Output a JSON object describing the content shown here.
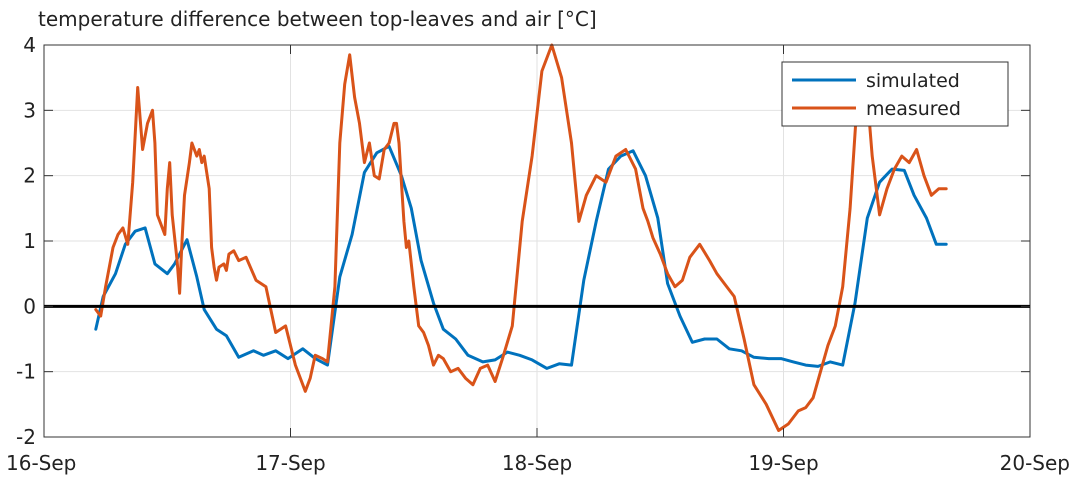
{
  "chart_data": {
    "type": "line",
    "title": "temperature difference between top-leaves and air [°C]",
    "xlabel": "",
    "ylabel": "",
    "x_axis": {
      "type": "date",
      "ticks": [
        "16-Sep",
        "17-Sep",
        "18-Sep",
        "19-Sep",
        "20-Sep"
      ],
      "range": [
        "16-Sep",
        "20-Sep"
      ]
    },
    "ylim": [
      -2,
      4
    ],
    "yticks": [
      -2,
      -1,
      0,
      1,
      2,
      3,
      4
    ],
    "ytick_labels": [
      "-2",
      "-1",
      "0",
      "1",
      "2",
      "3",
      "4"
    ],
    "grid": true,
    "zero_line": true,
    "legend": {
      "position": "top-right"
    },
    "colors": {
      "simulated": "#0072BD",
      "measured": "#D95319",
      "zero": "#000000",
      "grid": "#e2e2e2"
    },
    "series": [
      {
        "name": "simulated",
        "x_days": [
          0.21,
          0.24,
          0.29,
          0.33,
          0.37,
          0.41,
          0.45,
          0.5,
          0.53,
          0.58,
          0.62,
          0.65,
          0.7,
          0.74,
          0.79,
          0.85,
          0.89,
          0.94,
          0.99,
          1.05,
          1.1,
          1.15,
          1.2,
          1.25,
          1.3,
          1.35,
          1.4,
          1.45,
          1.49,
          1.53,
          1.58,
          1.62,
          1.67,
          1.72,
          1.78,
          1.83,
          1.88,
          1.93,
          1.98,
          2.04,
          2.09,
          2.14,
          2.19,
          2.24,
          2.29,
          2.34,
          2.39,
          2.44,
          2.49,
          2.53,
          2.58,
          2.63,
          2.68,
          2.73,
          2.78,
          2.83,
          2.88,
          2.94,
          2.99,
          3.04,
          3.09,
          3.14,
          3.19,
          3.24,
          3.29,
          3.34,
          3.39,
          3.44,
          3.49,
          3.53,
          3.58,
          3.62,
          3.66
        ],
        "values": [
          -0.35,
          0.15,
          0.5,
          0.95,
          1.15,
          1.2,
          0.65,
          0.5,
          0.65,
          1.02,
          0.45,
          -0.05,
          -0.35,
          -0.45,
          -0.78,
          -0.68,
          -0.75,
          -0.68,
          -0.8,
          -0.65,
          -0.8,
          -0.9,
          0.45,
          1.1,
          2.05,
          2.35,
          2.45,
          2.0,
          1.5,
          0.7,
          0.05,
          -0.35,
          -0.5,
          -0.75,
          -0.85,
          -0.82,
          -0.7,
          -0.75,
          -0.82,
          -0.95,
          -0.88,
          -0.9,
          0.4,
          1.3,
          2.1,
          2.3,
          2.38,
          2.0,
          1.35,
          0.35,
          -0.15,
          -0.55,
          -0.5,
          -0.5,
          -0.65,
          -0.68,
          -0.78,
          -0.8,
          -0.8,
          -0.85,
          -0.9,
          -0.92,
          -0.85,
          -0.9,
          0.05,
          1.35,
          1.9,
          2.1,
          2.08,
          1.7,
          1.35,
          0.95,
          0.95
        ],
        "values_note": ""
      },
      {
        "name": "measured",
        "x_days": [
          0.21,
          0.23,
          0.25,
          0.28,
          0.3,
          0.32,
          0.34,
          0.36,
          0.38,
          0.4,
          0.42,
          0.44,
          0.45,
          0.46,
          0.48,
          0.49,
          0.5,
          0.51,
          0.52,
          0.54,
          0.55,
          0.56,
          0.57,
          0.59,
          0.6,
          0.62,
          0.63,
          0.64,
          0.65,
          0.67,
          0.68,
          0.69,
          0.7,
          0.71,
          0.73,
          0.74,
          0.75,
          0.77,
          0.79,
          0.82,
          0.86,
          0.9,
          0.94,
          0.98,
          1.02,
          1.06,
          1.08,
          1.1,
          1.13,
          1.15,
          1.18,
          1.2,
          1.22,
          1.24,
          1.26,
          1.28,
          1.3,
          1.32,
          1.34,
          1.36,
          1.38,
          1.4,
          1.42,
          1.43,
          1.44,
          1.45,
          1.46,
          1.47,
          1.48,
          1.5,
          1.52,
          1.54,
          1.56,
          1.58,
          1.6,
          1.62,
          1.65,
          1.68,
          1.71,
          1.74,
          1.77,
          1.8,
          1.83,
          1.86,
          1.9,
          1.94,
          1.98,
          2.02,
          2.06,
          2.1,
          2.14,
          2.17,
          2.2,
          2.24,
          2.28,
          2.32,
          2.36,
          2.4,
          2.43,
          2.45,
          2.47,
          2.5,
          2.53,
          2.56,
          2.59,
          2.62,
          2.66,
          2.7,
          2.73,
          2.76,
          2.8,
          2.84,
          2.88,
          2.93,
          2.98,
          3.02,
          3.06,
          3.09,
          3.12,
          3.15,
          3.18,
          3.21,
          3.24,
          3.27,
          3.3,
          3.33,
          3.36,
          3.39,
          3.42,
          3.45,
          3.48,
          3.51,
          3.54,
          3.57,
          3.6,
          3.63,
          3.66
        ],
        "values": [
          -0.05,
          -0.15,
          0.3,
          0.9,
          1.1,
          1.2,
          0.95,
          1.9,
          3.35,
          2.4,
          2.8,
          3.0,
          2.5,
          1.4,
          1.2,
          1.1,
          1.8,
          2.2,
          1.4,
          0.7,
          0.2,
          1.0,
          1.7,
          2.2,
          2.5,
          2.3,
          2.4,
          2.2,
          2.3,
          1.8,
          0.9,
          0.6,
          0.4,
          0.6,
          0.65,
          0.55,
          0.8,
          0.85,
          0.7,
          0.75,
          0.4,
          0.3,
          -0.4,
          -0.3,
          -0.9,
          -1.3,
          -1.1,
          -0.75,
          -0.8,
          -0.85,
          0.3,
          2.5,
          3.4,
          3.85,
          3.2,
          2.8,
          2.2,
          2.5,
          2.0,
          1.95,
          2.4,
          2.5,
          2.8,
          2.8,
          2.5,
          1.9,
          1.3,
          0.9,
          1.0,
          0.3,
          -0.3,
          -0.4,
          -0.6,
          -0.9,
          -0.75,
          -0.8,
          -1.0,
          -0.95,
          -1.1,
          -1.2,
          -0.95,
          -0.9,
          -1.15,
          -0.8,
          -0.3,
          1.3,
          2.3,
          3.6,
          4.0,
          3.5,
          2.5,
          1.3,
          1.7,
          2.0,
          1.9,
          2.3,
          2.4,
          2.1,
          1.5,
          1.3,
          1.05,
          0.8,
          0.5,
          0.3,
          0.4,
          0.75,
          0.95,
          0.7,
          0.5,
          0.35,
          0.15,
          -0.5,
          -1.2,
          -1.5,
          -1.9,
          -1.8,
          -1.6,
          -1.55,
          -1.4,
          -1.0,
          -0.6,
          -0.3,
          0.3,
          1.5,
          3.2,
          3.7,
          2.3,
          1.4,
          1.8,
          2.1,
          2.3,
          2.2,
          2.4,
          2.0,
          1.7,
          1.8,
          1.8
        ],
        "values_note": ""
      }
    ]
  }
}
